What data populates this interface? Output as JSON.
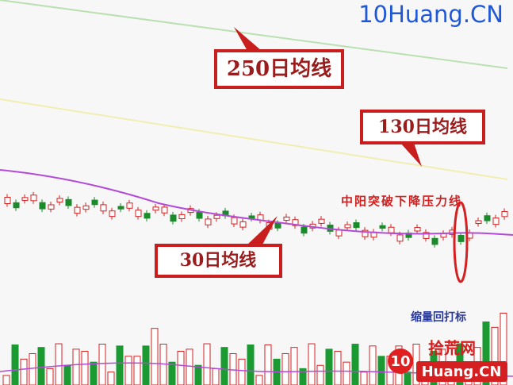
{
  "watermark": "10Huang.CN",
  "labels": {
    "ma250": "250日均线",
    "ma130": "130日均线",
    "ma30": "30日均线"
  },
  "annotations": {
    "breakout": "中阳突破下降压力线",
    "pullback": "缩量回打标"
  },
  "logo": {
    "number": "10",
    "name": "拾荒网",
    "domain": "Huang.CN"
  }
}
